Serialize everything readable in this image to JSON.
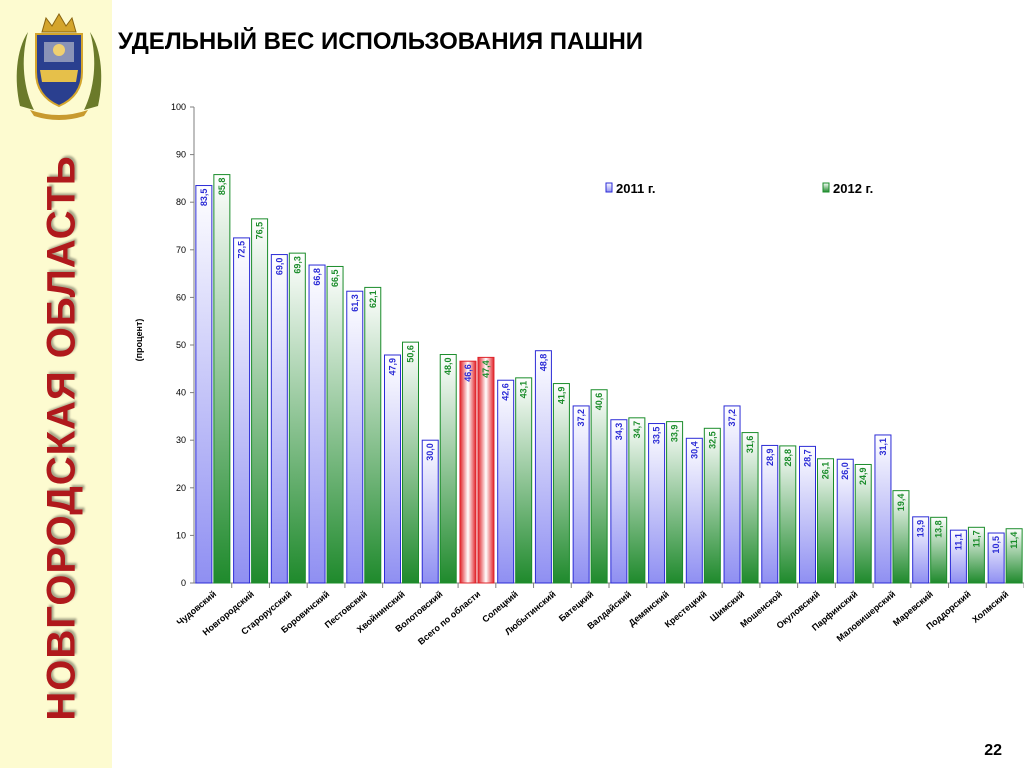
{
  "sidebar": {
    "region_name": "НОВГОРОДСКАЯ ОБЛАСТЬ"
  },
  "slide": {
    "title": "УДЕЛЬНЫЙ ВЕС ИСПОЛЬЗОВАНИЯ ПАШНИ",
    "page_number": "22"
  },
  "icons": {
    "emblem": "novgorod-coat-of-arms-icon"
  },
  "colors": {
    "sidebar_bg": "#fdfbd0",
    "region_text": "#b0191c",
    "series_2011_edge": "#2b2bd6",
    "series_2011_fill": "#8f8ff2",
    "series_2012_edge": "#1a8c2a",
    "series_2012_fill": "#1f8a2c",
    "highlight": "#e0232a"
  },
  "chart_data": {
    "type": "bar",
    "ylabel": "(процент)",
    "ylim": [
      0,
      100
    ],
    "yticks": [
      0,
      10,
      20,
      30,
      40,
      50,
      60,
      70,
      80,
      90,
      100
    ],
    "grid": false,
    "legend_position": "top-right",
    "highlighted_category": "Всего по области",
    "categories": [
      "Чудовский",
      "Новгородский",
      "Старорусский",
      "Боровичский",
      "Пестовский",
      "Хвойнинский",
      "Волотовский",
      "Всего по области",
      "Солецкий",
      "Любытинский",
      "Батецкий",
      "Валдайский",
      "Демянский",
      "Крестецкий",
      "Шимский",
      "Мошенской",
      "Окуловский",
      "Парфинский",
      "Маловишерский",
      "Маревский",
      "Поддорский",
      "Холмский"
    ],
    "series": [
      {
        "name": "2011 г.",
        "values": [
          83.5,
          72.5,
          69.0,
          66.8,
          61.3,
          47.9,
          30.0,
          46.6,
          42.6,
          48.8,
          37.2,
          34.3,
          33.5,
          30.4,
          37.2,
          28.9,
          28.7,
          26.0,
          31.1,
          13.9,
          11.1,
          10.5
        ],
        "labels": [
          "83,5",
          "72,5",
          "69,0",
          "66,8",
          "61,3",
          "47,9",
          "30,0",
          "46,6",
          "42,6",
          "48,8",
          "37,2",
          "34,3",
          "33,5",
          "30,4",
          "37,2",
          "28,9",
          "28,7",
          "26,0",
          "31,1",
          "13,9",
          "11,1",
          "10,5"
        ]
      },
      {
        "name": "2012 г.",
        "values": [
          85.8,
          76.5,
          69.3,
          66.5,
          62.1,
          50.6,
          48.0,
          47.4,
          43.1,
          41.9,
          40.6,
          34.7,
          33.9,
          32.5,
          31.6,
          28.8,
          26.1,
          24.9,
          19.4,
          13.8,
          11.7,
          11.4
        ],
        "labels": [
          "85,8",
          "76,5",
          "69,3",
          "66,5",
          "62,1",
          "50,6",
          "48,0",
          "47,4",
          "43,1",
          "41,9",
          "40,6",
          "34,7",
          "33,9",
          "32,5",
          "31,6",
          "28,8",
          "26,1",
          "24,9",
          "19,4",
          "13,8",
          "11,7",
          "11,4"
        ]
      }
    ]
  }
}
